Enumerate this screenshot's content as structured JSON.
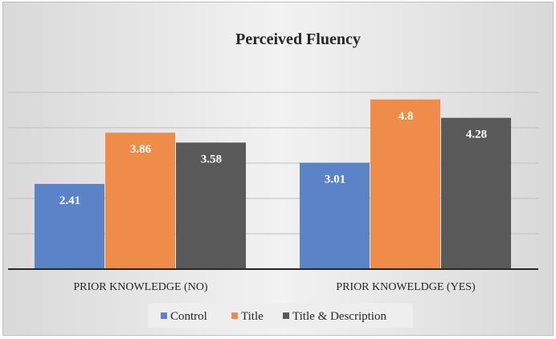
{
  "chart_data": {
    "type": "bar",
    "title": "Perceived Fluency",
    "categories": [
      "PRIOR KNOWLEDGE (NO)",
      "PRIOR KNOWELDGE (YES)"
    ],
    "series": [
      {
        "name": "Control",
        "values": [
          2.41,
          3.01
        ],
        "color": "#5b83c8"
      },
      {
        "name": "Title",
        "values": [
          3.86,
          4.8
        ],
        "color": "#ef8c4a"
      },
      {
        "name": "Title & Description",
        "values": [
          3.58,
          4.28
        ],
        "color": "#595959"
      }
    ],
    "ylim": [
      0,
      5
    ],
    "grid": true,
    "legend": "bottom",
    "data_labels": true
  }
}
